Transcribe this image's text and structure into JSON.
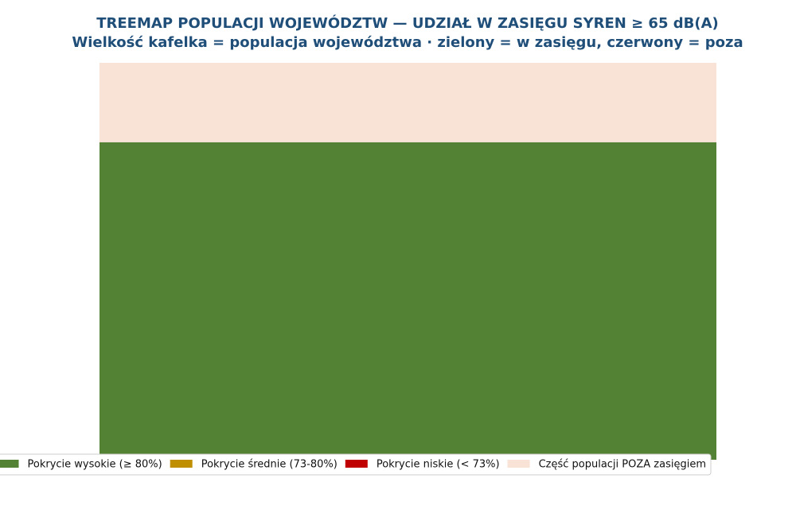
{
  "chart_data": {
    "type": "treemap",
    "title": "TREEMAP POPULACJI WOJEWÓDZTW — UDZIAŁ W ZASIĘGU SYREN ≥ 65 dB(A)",
    "subtitle": "Wielkość kafelka = populacja województwa · zielony = w zasięgu, czerwony = poza",
    "series": [
      {
        "name": "Pokrycie wysokie (≥ 80%)",
        "color": "#548235",
        "values": [
          80
        ]
      },
      {
        "name": "Pokrycie średnie (73-80%)",
        "color": "#bf8f00",
        "values": [
          null
        ]
      },
      {
        "name": "Pokrycie niskie (< 73%)",
        "color": "#c00000",
        "values": [
          null
        ]
      },
      {
        "name": "Część populacji POZA zasięgiem",
        "color": "#f8e3d6",
        "values": [
          20
        ]
      }
    ],
    "legend": "lower center"
  }
}
